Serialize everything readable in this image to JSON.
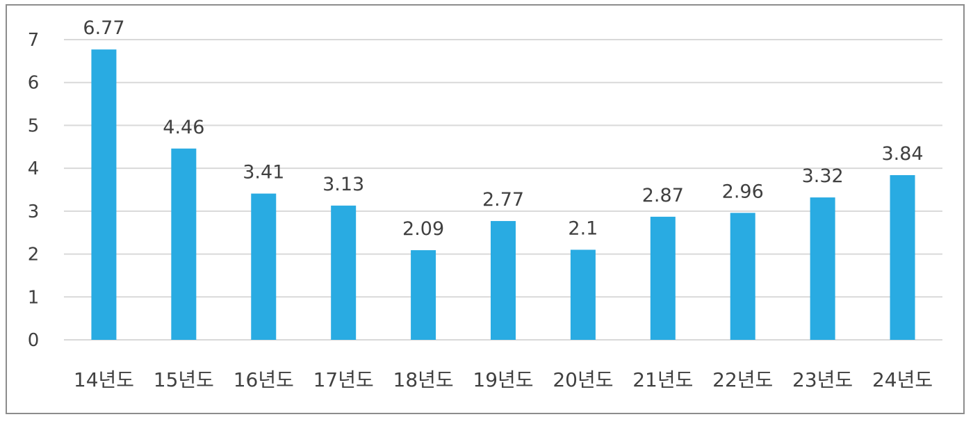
{
  "chart_data": {
    "type": "bar",
    "title": "",
    "xlabel": "",
    "ylabel": "",
    "categories": [
      "14년도",
      "15년도",
      "16년도",
      "17년도",
      "18년도",
      "19년도",
      "20년도",
      "21년도",
      "22년도",
      "23년도",
      "24년도"
    ],
    "values": [
      6.77,
      4.46,
      3.41,
      3.13,
      2.09,
      2.77,
      2.1,
      2.87,
      2.96,
      3.32,
      3.84
    ],
    "value_labels": [
      "6.77",
      "4.46",
      "3.41",
      "3.13",
      "2.09",
      "2.77",
      "2.1",
      "2.87",
      "2.96",
      "3.32",
      "3.84"
    ],
    "ylim": [
      0,
      7
    ],
    "yticks": [
      0,
      1,
      2,
      3,
      4,
      5,
      6,
      7
    ],
    "ytick_labels": [
      "0",
      "1",
      "2",
      "3",
      "4",
      "5",
      "6",
      "7"
    ],
    "grid": true,
    "legend": "none",
    "bar_color": "#29abe2"
  }
}
